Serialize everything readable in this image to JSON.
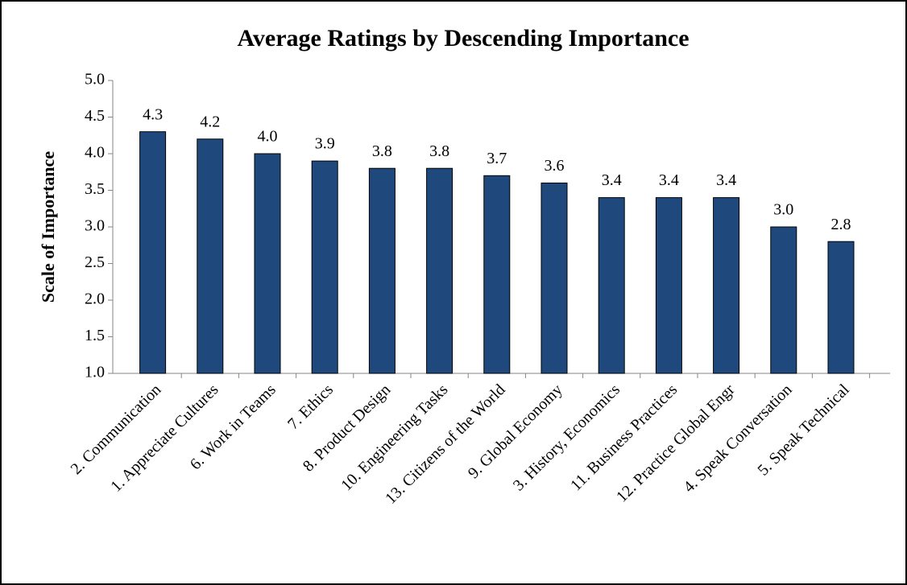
{
  "chart_data": {
    "type": "bar",
    "title": "Average Ratings by Descending Importance",
    "y_label": "Scale of Importance",
    "categories": [
      "2. Communication",
      "1. Appreciate Cultures",
      "6. Work in Teams",
      "7. Ethics",
      "8. Product Design",
      "10. Engineering Tasks",
      "13. Citizens of the World",
      "9. Global Economy",
      "3. History, Economics",
      "11. Business Practices",
      "12. Practice Global Engr",
      "4. Speak Conversation",
      "5. Speak Technical"
    ],
    "values": [
      4.3,
      4.2,
      4.0,
      3.9,
      3.8,
      3.8,
      3.7,
      3.6,
      3.4,
      3.4,
      3.4,
      3.0,
      2.8
    ],
    "value_labels": [
      "4.3",
      "4.2",
      "4.0",
      "3.9",
      "3.8",
      "3.8",
      "3.7",
      "3.6",
      "3.4",
      "3.4",
      "3.4",
      "3.0",
      "2.8"
    ],
    "color": "#1f497d",
    "ylim": [
      1,
      5
    ],
    "yticks": [
      {
        "value": 1,
        "label": "1.0"
      },
      {
        "value": 1.5,
        "label": "1.5"
      },
      {
        "value": 2,
        "label": "2.0"
      },
      {
        "value": 2.5,
        "label": "2.5"
      },
      {
        "value": 3,
        "label": "3.0"
      },
      {
        "value": 3.5,
        "label": "3.5"
      },
      {
        "value": 4,
        "label": "4.0"
      },
      {
        "value": 4.5,
        "label": "4.5"
      },
      {
        "value": 5,
        "label": "5.0"
      }
    ],
    "grid": false
  }
}
